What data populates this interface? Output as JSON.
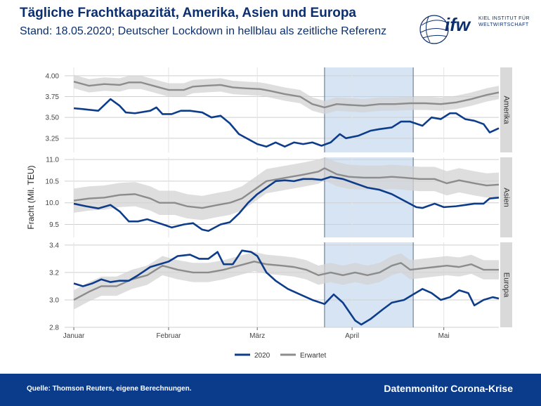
{
  "header": {
    "title": "Tägliche Frachtkapazität, Amerika, Asien und Europa",
    "subtitle": "Stand: 18.05.2020; Deutscher Lockdown in hellblau als zeitliche Referenz"
  },
  "logo": {
    "word": "ifw",
    "line1": "KIEL INSTITUT FÜR",
    "line2": "WELTWIRTSCHAFT"
  },
  "footer": {
    "source": "Quelle: Thomson Reuters, eigene Berechnungen.",
    "brand": "Datenmonitor Corona-Krise"
  },
  "colors": {
    "series_2020": "#0d3d8a",
    "series_expected": "#8c8c8c",
    "band": "#d3d3d3",
    "lockdown": "#d6e4f4",
    "strip": "#d9d9d9",
    "footer": "#0b3c8c"
  },
  "chart_data": {
    "type": "line",
    "ylabel": "Fracht (Mil. TEU)",
    "x_ticks": [
      {
        "label": "Januar",
        "day": 0
      },
      {
        "label": "Februar",
        "day": 31
      },
      {
        "label": "März",
        "day": 60
      },
      {
        "label": "April",
        "day": 91
      },
      {
        "label": "Mai",
        "day": 121
      }
    ],
    "x_range": [
      -3,
      139
    ],
    "lockdown_days": [
      82,
      111
    ],
    "legend": [
      {
        "name": "2020",
        "color": "#0d3d8a"
      },
      {
        "name": "Erwartet",
        "color": "#8c8c8c"
      }
    ],
    "panels": [
      {
        "name": "Amerika",
        "ylim": [
          3.08,
          4.1
        ],
        "yticks": [
          3.25,
          3.5,
          3.75,
          4.0
        ],
        "ytick_labels": [
          "3.25",
          "3.50",
          "3.75",
          "4.00"
        ],
        "actual": [
          [
            0,
            3.61
          ],
          [
            3,
            3.6
          ],
          [
            8,
            3.58
          ],
          [
            12,
            3.72
          ],
          [
            15,
            3.64
          ],
          [
            17,
            3.56
          ],
          [
            20,
            3.55
          ],
          [
            25,
            3.58
          ],
          [
            27,
            3.62
          ],
          [
            29,
            3.54
          ],
          [
            32,
            3.54
          ],
          [
            35,
            3.58
          ],
          [
            38,
            3.58
          ],
          [
            42,
            3.56
          ],
          [
            45,
            3.5
          ],
          [
            48,
            3.52
          ],
          [
            51,
            3.43
          ],
          [
            54,
            3.3
          ],
          [
            57,
            3.24
          ],
          [
            60,
            3.18
          ],
          [
            63,
            3.15
          ],
          [
            66,
            3.2
          ],
          [
            69,
            3.15
          ],
          [
            72,
            3.2
          ],
          [
            75,
            3.18
          ],
          [
            78,
            3.2
          ],
          [
            81,
            3.16
          ],
          [
            84,
            3.2
          ],
          [
            87,
            3.3
          ],
          [
            89,
            3.25
          ],
          [
            93,
            3.28
          ],
          [
            97,
            3.34
          ],
          [
            100,
            3.36
          ],
          [
            104,
            3.38
          ],
          [
            107,
            3.45
          ],
          [
            110,
            3.45
          ],
          [
            114,
            3.4
          ],
          [
            117,
            3.5
          ],
          [
            120,
            3.48
          ],
          [
            123,
            3.55
          ],
          [
            125,
            3.55
          ],
          [
            128,
            3.48
          ],
          [
            131,
            3.46
          ],
          [
            134,
            3.42
          ],
          [
            136,
            3.32
          ],
          [
            139,
            3.37
          ]
        ],
        "expected": [
          [
            0,
            3.93
          ],
          [
            5,
            3.88
          ],
          [
            10,
            3.9
          ],
          [
            15,
            3.89
          ],
          [
            18,
            3.92
          ],
          [
            22,
            3.92
          ],
          [
            27,
            3.87
          ],
          [
            31,
            3.83
          ],
          [
            36,
            3.83
          ],
          [
            39,
            3.87
          ],
          [
            43,
            3.88
          ],
          [
            48,
            3.89
          ],
          [
            52,
            3.86
          ],
          [
            56,
            3.85
          ],
          [
            61,
            3.84
          ],
          [
            64,
            3.82
          ],
          [
            69,
            3.78
          ],
          [
            74,
            3.75
          ],
          [
            78,
            3.66
          ],
          [
            82,
            3.62
          ],
          [
            86,
            3.66
          ],
          [
            90,
            3.65
          ],
          [
            95,
            3.64
          ],
          [
            100,
            3.66
          ],
          [
            105,
            3.66
          ],
          [
            110,
            3.67
          ],
          [
            115,
            3.67
          ],
          [
            120,
            3.66
          ],
          [
            125,
            3.68
          ],
          [
            130,
            3.72
          ],
          [
            135,
            3.77
          ],
          [
            139,
            3.8
          ]
        ],
        "band_halfwidth": 0.08
      },
      {
        "name": "Asien",
        "ylim": [
          9.2,
          11.05
        ],
        "yticks": [
          9.5,
          10.0,
          10.5,
          11.0
        ],
        "ytick_labels": [
          "9.5",
          "10.0",
          "10.5",
          "11.0"
        ],
        "actual": [
          [
            0,
            9.98
          ],
          [
            4,
            9.92
          ],
          [
            8,
            9.87
          ],
          [
            12,
            9.95
          ],
          [
            15,
            9.8
          ],
          [
            18,
            9.57
          ],
          [
            21,
            9.57
          ],
          [
            24,
            9.62
          ],
          [
            27,
            9.55
          ],
          [
            30,
            9.48
          ],
          [
            32,
            9.43
          ],
          [
            36,
            9.5
          ],
          [
            39,
            9.53
          ],
          [
            42,
            9.38
          ],
          [
            44,
            9.35
          ],
          [
            48,
            9.5
          ],
          [
            51,
            9.55
          ],
          [
            54,
            9.75
          ],
          [
            57,
            10.0
          ],
          [
            60,
            10.2
          ],
          [
            63,
            10.35
          ],
          [
            66,
            10.5
          ],
          [
            69,
            10.52
          ],
          [
            72,
            10.5
          ],
          [
            75,
            10.55
          ],
          [
            78,
            10.55
          ],
          [
            81,
            10.53
          ],
          [
            84,
            10.6
          ],
          [
            88,
            10.55
          ],
          [
            92,
            10.45
          ],
          [
            96,
            10.35
          ],
          [
            100,
            10.3
          ],
          [
            104,
            10.2
          ],
          [
            108,
            10.05
          ],
          [
            112,
            9.9
          ],
          [
            114,
            9.88
          ],
          [
            118,
            9.98
          ],
          [
            121,
            9.9
          ],
          [
            125,
            9.92
          ],
          [
            128,
            9.95
          ],
          [
            131,
            9.98
          ],
          [
            134,
            9.98
          ],
          [
            136,
            10.1
          ],
          [
            139,
            10.12
          ]
        ],
        "expected": [
          [
            0,
            10.05
          ],
          [
            5,
            10.1
          ],
          [
            10,
            10.12
          ],
          [
            15,
            10.18
          ],
          [
            20,
            10.2
          ],
          [
            25,
            10.1
          ],
          [
            28,
            10.0
          ],
          [
            33,
            10.0
          ],
          [
            37,
            9.92
          ],
          [
            42,
            9.88
          ],
          [
            47,
            9.95
          ],
          [
            51,
            10.0
          ],
          [
            55,
            10.1
          ],
          [
            59,
            10.3
          ],
          [
            63,
            10.5
          ],
          [
            67,
            10.55
          ],
          [
            71,
            10.6
          ],
          [
            75,
            10.65
          ],
          [
            80,
            10.72
          ],
          [
            82,
            10.8
          ],
          [
            86,
            10.66
          ],
          [
            90,
            10.6
          ],
          [
            95,
            10.58
          ],
          [
            100,
            10.58
          ],
          [
            104,
            10.6
          ],
          [
            108,
            10.58
          ],
          [
            113,
            10.55
          ],
          [
            118,
            10.55
          ],
          [
            122,
            10.45
          ],
          [
            126,
            10.52
          ],
          [
            131,
            10.45
          ],
          [
            135,
            10.4
          ],
          [
            139,
            10.42
          ]
        ],
        "band_halfwidth": 0.28
      },
      {
        "name": "Europa",
        "ylim": [
          2.8,
          3.42
        ],
        "yticks": [
          2.8,
          3.0,
          3.2,
          3.4
        ],
        "ytick_labels": [
          "2.8",
          "3.0",
          "3.2",
          "3.4"
        ],
        "actual": [
          [
            0,
            3.12
          ],
          [
            3,
            3.1
          ],
          [
            6,
            3.12
          ],
          [
            9,
            3.15
          ],
          [
            12,
            3.13
          ],
          [
            15,
            3.14
          ],
          [
            18,
            3.14
          ],
          [
            21,
            3.18
          ],
          [
            25,
            3.24
          ],
          [
            28,
            3.26
          ],
          [
            31,
            3.28
          ],
          [
            34,
            3.32
          ],
          [
            38,
            3.33
          ],
          [
            41,
            3.3
          ],
          [
            44,
            3.3
          ],
          [
            47,
            3.35
          ],
          [
            49,
            3.26
          ],
          [
            52,
            3.26
          ],
          [
            55,
            3.36
          ],
          [
            58,
            3.35
          ],
          [
            60,
            3.32
          ],
          [
            63,
            3.2
          ],
          [
            66,
            3.14
          ],
          [
            70,
            3.08
          ],
          [
            74,
            3.04
          ],
          [
            78,
            3.0
          ],
          [
            82,
            2.97
          ],
          [
            85,
            3.04
          ],
          [
            88,
            2.98
          ],
          [
            92,
            2.85
          ],
          [
            94,
            2.82
          ],
          [
            97,
            2.86
          ],
          [
            101,
            2.93
          ],
          [
            104,
            2.98
          ],
          [
            108,
            3.0
          ],
          [
            111,
            3.04
          ],
          [
            114,
            3.08
          ],
          [
            117,
            3.05
          ],
          [
            120,
            3.0
          ],
          [
            123,
            3.02
          ],
          [
            126,
            3.07
          ],
          [
            129,
            3.05
          ],
          [
            131,
            2.96
          ],
          [
            134,
            3.0
          ],
          [
            137,
            3.02
          ],
          [
            139,
            3.01
          ]
        ],
        "expected": [
          [
            0,
            3.0
          ],
          [
            5,
            3.06
          ],
          [
            9,
            3.1
          ],
          [
            14,
            3.1
          ],
          [
            19,
            3.15
          ],
          [
            24,
            3.18
          ],
          [
            29,
            3.25
          ],
          [
            34,
            3.22
          ],
          [
            39,
            3.2
          ],
          [
            44,
            3.2
          ],
          [
            49,
            3.22
          ],
          [
            54,
            3.25
          ],
          [
            59,
            3.28
          ],
          [
            63,
            3.26
          ],
          [
            68,
            3.25
          ],
          [
            72,
            3.24
          ],
          [
            76,
            3.22
          ],
          [
            80,
            3.18
          ],
          [
            84,
            3.2
          ],
          [
            88,
            3.18
          ],
          [
            92,
            3.2
          ],
          [
            96,
            3.18
          ],
          [
            100,
            3.2
          ],
          [
            104,
            3.25
          ],
          [
            107,
            3.27
          ],
          [
            110,
            3.22
          ],
          [
            114,
            3.23
          ],
          [
            118,
            3.24
          ],
          [
            122,
            3.25
          ],
          [
            126,
            3.24
          ],
          [
            130,
            3.26
          ],
          [
            134,
            3.22
          ],
          [
            139,
            3.22
          ]
        ],
        "band_halfwidth": 0.07
      }
    ]
  }
}
